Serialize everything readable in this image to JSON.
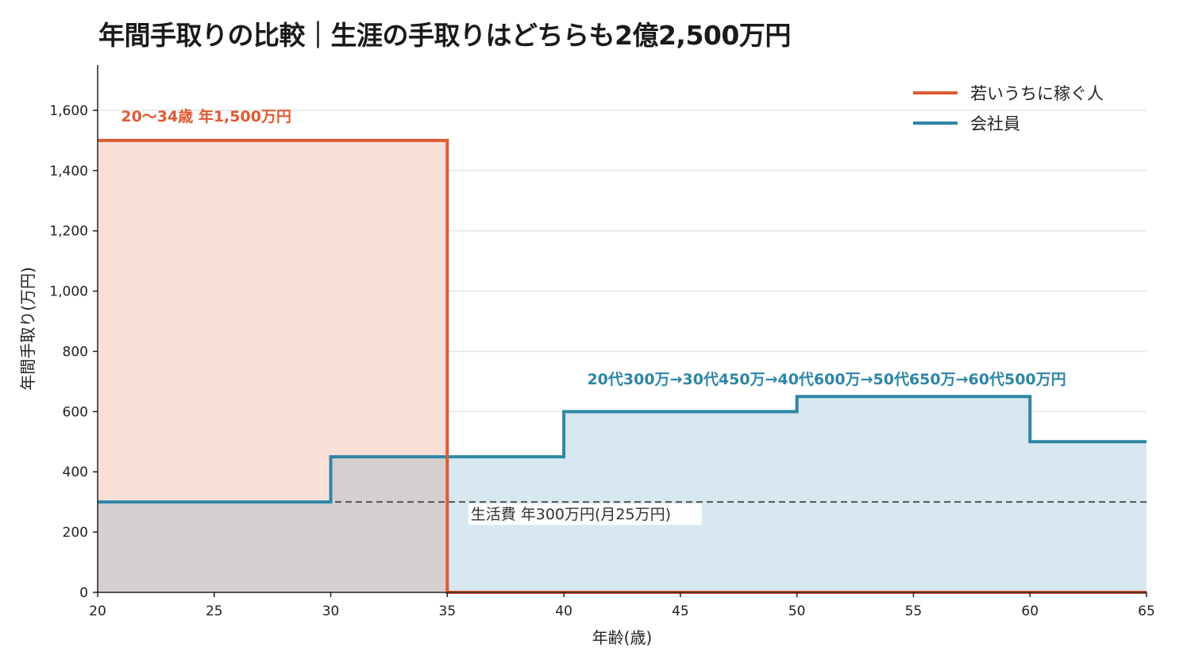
{
  "chart_data": {
    "type": "line",
    "title": "年間手取りの比較｜生涯の手取りはどちらも2億2,500万円",
    "xlabel": "年齢(歳)",
    "ylabel": "年間手取り(万円)",
    "xlim": [
      20,
      65
    ],
    "ylim": [
      0,
      1750
    ],
    "x_ticks": [
      20,
      25,
      30,
      35,
      40,
      45,
      50,
      55,
      60,
      65
    ],
    "y_ticks": [
      0,
      200,
      400,
      600,
      800,
      1000,
      1200,
      1400,
      1600
    ],
    "grid": "horizontal",
    "legend_position": "top-right",
    "series": [
      {
        "name": "若いうちに稼ぐ人",
        "color": "#e05a33",
        "fill": "#fbe0da",
        "steps": [
          {
            "x0": 20,
            "x1": 35,
            "y": 1500
          },
          {
            "x0": 35,
            "x1": 65,
            "y": 0
          }
        ],
        "annotation": "20〜34歳 年1,500万円"
      },
      {
        "name": "会社員",
        "color": "#2e86a6",
        "fill": "#d8e8f0",
        "steps": [
          {
            "x0": 20,
            "x1": 30,
            "y": 300
          },
          {
            "x0": 30,
            "x1": 40,
            "y": 450
          },
          {
            "x0": 40,
            "x1": 50,
            "y": 600
          },
          {
            "x0": 50,
            "x1": 60,
            "y": 650
          },
          {
            "x0": 60,
            "x1": 65,
            "y": 500
          }
        ],
        "annotation": "20代300万→30代450万→40代600万→50代650万→60代500万円"
      }
    ],
    "reference_line": {
      "y": 300,
      "label": "生活費 年300万円(月25万円)",
      "color": "#555555"
    },
    "overlap_fill": "#d6cfd0"
  }
}
